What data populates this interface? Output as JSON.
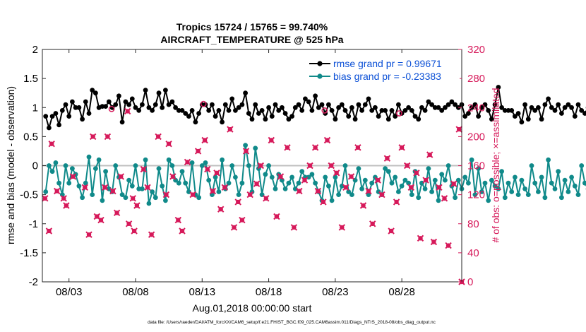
{
  "chart_data": {
    "type": "line",
    "title_line1": "Tropics 15724 / 15765 = 99.740%",
    "title_line2": "AIRCRAFT_TEMPERATURE @ 525 hPa",
    "xlabel": "Aug.01,2018 00:00:00 start",
    "ylabel_left": "rmse and bias (model - observation)",
    "ylabel_right": "# of obs: o=possible; ×=assimilated",
    "footer": "data file: /Users/raeder/DAI/ATM_forcXX/CAM6_setup/f.e21.FHIST_BGC.f09_025.CAM6assim.011/Diags_NTrS_2018-08/obs_diag_output.nc",
    "xlim": [
      1.0,
      32.5
    ],
    "ylim_left": [
      -2,
      2
    ],
    "ylim_right": [
      0,
      320
    ],
    "left_ticks": [
      "-2",
      "-1.5",
      "-1",
      "-0.5",
      "0",
      "0.5",
      "1",
      "1.5",
      "2"
    ],
    "right_ticks": [
      "0",
      "40",
      "80",
      "120",
      "160",
      "200",
      "240",
      "280",
      "320"
    ],
    "x_ticks": [
      {
        "value": 3,
        "label": "08/03"
      },
      {
        "value": 8,
        "label": "08/08"
      },
      {
        "value": 13,
        "label": "08/13"
      },
      {
        "value": 18,
        "label": "08/18"
      },
      {
        "value": 23,
        "label": "08/23"
      },
      {
        "value": 28,
        "label": "08/28"
      }
    ],
    "legend": [
      {
        "label": "rmse grand pr = 0.99671",
        "color": "#000000"
      },
      {
        "label": "bias grand pr = -0.23383",
        "color": "#108a8a"
      }
    ],
    "colors": {
      "rmse": "#000000",
      "bias": "#108a8a",
      "obs": "#d6195a",
      "zero_line": "#bfbfbf",
      "legend_text": "#0a4fd6"
    },
    "x_start": 1.25,
    "x_step": 0.25,
    "series": [
      {
        "name": "rmse",
        "values": [
          0.85,
          0.65,
          0.85,
          0.9,
          0.7,
          0.95,
          1.05,
          0.85,
          1.1,
          1.0,
          1.0,
          0.8,
          1.1,
          0.9,
          1.3,
          1.25,
          1.0,
          1.02,
          1.02,
          1.1,
          1.0,
          1.05,
          1.2,
          0.75,
          1.1,
          1.05,
          1.15,
          1.0,
          0.95,
          1.05,
          1.3,
          1.0,
          0.95,
          1.05,
          1.25,
          1.0,
          1.3,
          1.05,
          1.1,
          1.0,
          0.95,
          0.95,
          0.9,
          0.85,
          0.95,
          0.75,
          0.9,
          1.05,
          1.05,
          0.95,
          1.05,
          0.85,
          0.95,
          0.75,
          1.05,
          0.95,
          1.15,
          0.95,
          1.0,
          1.05,
          1.25,
          0.9,
          0.8,
          1.05,
          0.9,
          0.95,
          0.8,
          1.0,
          0.85,
          1.05,
          0.95,
          1.0,
          0.9,
          0.8,
          0.85,
          1.0,
          1.05,
          0.95,
          1.15,
          1.1,
          0.95,
          1.2,
          1.0,
          1.05,
          0.9,
          1.05,
          0.95,
          0.8,
          1.0,
          1.05,
          0.95,
          0.85,
          1.0,
          0.8,
          1.05,
          0.95,
          1.05,
          1.15,
          0.95,
          1.0,
          0.85,
          0.95,
          0.95,
          0.8,
          0.95,
          0.85,
          1.05,
          0.9,
          0.95,
          1.0,
          0.95,
          0.85,
          0.8,
          1.0,
          0.95,
          1.1,
          1.05,
          1.0,
          1.0,
          0.95,
          1.0,
          1.05,
          1.1,
          1.05,
          1.0,
          1.05,
          0.85,
          0.9,
          1.0,
          1.05,
          0.85,
          1.0,
          1.05,
          0.95,
          0.8,
          1.05,
          1.35,
          1.0,
          0.95,
          0.95,
          0.95,
          0.85,
          0.9,
          0.75,
          1.05,
          0.8,
          1.0,
          0.95,
          1.0,
          0.8,
          1.05,
          1.15,
          1.0,
          0.95,
          1.05,
          0.9,
          1.0,
          1.05,
          1.0,
          0.85,
          1.05,
          0.95,
          0.9,
          1.0,
          0.85,
          0.95,
          0.85,
          0.97
        ]
      },
      {
        "name": "bias",
        "values": [
          -0.45,
          0.0,
          -0.1,
          0.05,
          -0.3,
          -0.5,
          0.0,
          -0.3,
          -0.05,
          -0.15,
          -0.35,
          -0.55,
          -0.3,
          0.15,
          -0.5,
          -0.05,
          0.1,
          -0.6,
          -0.1,
          -0.4,
          -0.45,
          0.0,
          -0.2,
          -0.5,
          -0.55,
          -0.25,
          -0.35,
          0.0,
          -0.4,
          -0.4,
          0.1,
          -0.65,
          -0.45,
          -0.55,
          -0.05,
          -0.35,
          -0.6,
          0.1,
          0.0,
          -0.25,
          -0.3,
          -0.1,
          -0.3,
          -0.45,
          0.05,
          -0.5,
          -0.55,
          0.0,
          0.05,
          -0.25,
          -0.5,
          -0.2,
          -0.45,
          0.1,
          -0.4,
          -0.3,
          0.0,
          -0.2,
          -0.5,
          -0.3,
          0.35,
          0.0,
          -0.45,
          0.3,
          -0.05,
          -0.5,
          -0.15,
          0.0,
          -0.2,
          -0.4,
          -0.15,
          -0.25,
          -0.4,
          -0.3,
          -0.2,
          -0.4,
          -0.3,
          -0.1,
          -0.2,
          -0.2,
          -0.15,
          -0.3,
          -0.45,
          -0.6,
          -0.2,
          -0.35,
          -0.6,
          -0.2,
          -0.5,
          -0.35,
          0.0,
          -0.45,
          -0.5,
          -0.25,
          -0.05,
          -0.4,
          -0.25,
          -0.5,
          -0.3,
          -0.2,
          -0.45,
          -0.5,
          -0.05,
          -0.1,
          -0.3,
          -0.2,
          -0.45,
          -0.35,
          -0.25,
          -0.3,
          -0.5,
          -0.1,
          -0.55,
          -0.3,
          -0.4,
          -0.05,
          -0.45,
          -0.25,
          -0.6,
          -0.15,
          -0.25,
          0.0,
          -0.35,
          -0.55,
          -0.25,
          -0.4,
          -0.2,
          -0.3,
          0.1,
          -0.5,
          -0.05,
          -0.45,
          -0.3,
          -0.6,
          -0.25,
          -0.35,
          -0.4,
          -0.1,
          -0.55,
          -0.3,
          -0.45,
          -0.2,
          -0.5,
          -0.25,
          -0.4,
          -0.5,
          0.0,
          -0.3,
          -0.45,
          -0.2,
          -0.55,
          0.1,
          -0.3,
          -0.4,
          -0.1,
          -0.55,
          -0.25,
          -0.45,
          -0.2,
          -0.35,
          -0.5,
          0.0,
          -0.3,
          -0.4,
          -0.25,
          -0.3,
          -0.35,
          -0.2,
          -0.15
        ]
      },
      {
        "name": "obs_assimilated",
        "points": [
          [
            1.2,
            115
          ],
          [
            1.5,
            70
          ],
          [
            1.7,
            190
          ],
          [
            2.1,
            125
          ],
          [
            2.6,
            115
          ],
          [
            2.8,
            105
          ],
          [
            3.3,
            145
          ],
          [
            4.2,
            130
          ],
          [
            4.5,
            65
          ],
          [
            4.8,
            200
          ],
          [
            5.1,
            90
          ],
          [
            5.4,
            85
          ],
          [
            5.7,
            130
          ],
          [
            5.9,
            200
          ],
          [
            6.3,
            125
          ],
          [
            6.6,
            95
          ],
          [
            6.9,
            145
          ],
          [
            7.4,
            235
          ],
          [
            7.5,
            80
          ],
          [
            7.8,
            115
          ],
          [
            7.9,
            70
          ],
          [
            8.1,
            105
          ],
          [
            8.6,
            155
          ],
          [
            8.9,
            130
          ],
          [
            9.2,
            65
          ],
          [
            9.7,
            200
          ],
          [
            10.3,
            120
          ],
          [
            10.5,
            190
          ],
          [
            10.8,
            145
          ],
          [
            11.2,
            85
          ],
          [
            11.5,
            70
          ],
          [
            11.9,
            165
          ],
          [
            12.3,
            120
          ],
          [
            12.7,
            180
          ],
          [
            13.2,
            195
          ],
          [
            13.4,
            155
          ],
          [
            13.8,
            125
          ],
          [
            14.1,
            150
          ],
          [
            14.4,
            100
          ],
          [
            14.7,
            130
          ],
          [
            15.1,
            210
          ],
          [
            15.4,
            75
          ],
          [
            15.7,
            110
          ],
          [
            16.0,
            85
          ],
          [
            16.3,
            180
          ],
          [
            16.6,
            120
          ],
          [
            17.1,
            135
          ],
          [
            17.4,
            160
          ],
          [
            17.8,
            115
          ],
          [
            18.2,
            195
          ],
          [
            18.6,
            90
          ],
          [
            18.9,
            145
          ],
          [
            19.4,
            185
          ],
          [
            19.9,
            75
          ],
          [
            20.3,
            125
          ],
          [
            20.7,
            140
          ],
          [
            21.1,
            160
          ],
          [
            21.5,
            185
          ],
          [
            21.7,
            125
          ],
          [
            22.1,
            110
          ],
          [
            22.4,
            195
          ],
          [
            22.7,
            160
          ],
          [
            23.1,
            150
          ],
          [
            23.5,
            75
          ],
          [
            23.8,
            130
          ],
          [
            24.2,
            145
          ],
          [
            24.7,
            185
          ],
          [
            25.1,
            105
          ],
          [
            25.5,
            125
          ],
          [
            25.8,
            80
          ],
          [
            26.2,
            140
          ],
          [
            26.5,
            120
          ],
          [
            26.9,
            170
          ],
          [
            27.2,
            70
          ],
          [
            27.6,
            110
          ],
          [
            28.0,
            185
          ],
          [
            28.4,
            160
          ],
          [
            28.7,
            130
          ],
          [
            29.1,
            150
          ],
          [
            29.4,
            60
          ],
          [
            29.8,
            140
          ],
          [
            30.1,
            175
          ],
          [
            30.4,
            55
          ],
          [
            30.8,
            130
          ],
          [
            31.2,
            115
          ],
          [
            31.5,
            50
          ],
          [
            31.9,
            135
          ],
          [
            32.3,
            210
          ],
          [
            32.5,
            0
          ]
        ]
      },
      {
        "name": "obs_possible",
        "points": [
          [
            6.2,
            238
          ],
          [
            13.1,
            245
          ],
          [
            22.2,
            236
          ],
          [
            27.8,
            232
          ]
        ]
      }
    ]
  }
}
